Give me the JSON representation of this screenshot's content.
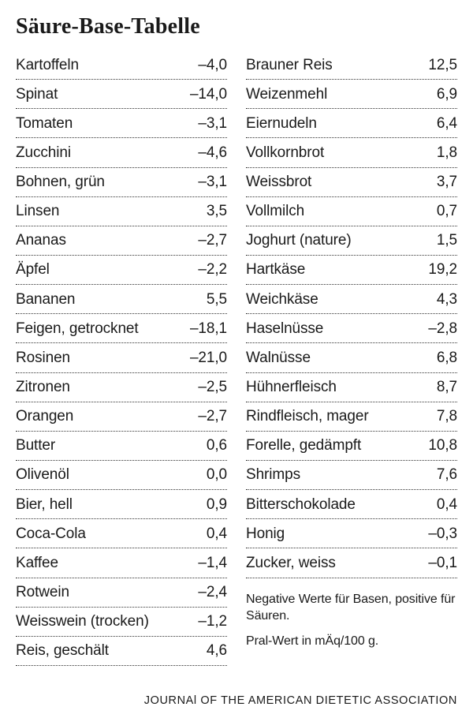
{
  "title": "Säure-Base-Tabelle",
  "left": [
    {
      "label": "Kartoffeln",
      "value": "–4,0"
    },
    {
      "label": "Spinat",
      "value": "–14,0"
    },
    {
      "label": "Tomaten",
      "value": "–3,1"
    },
    {
      "label": "Zucchini",
      "value": "–4,6"
    },
    {
      "label": "Bohnen, grün",
      "value": "–3,1"
    },
    {
      "label": "Linsen",
      "value": "3,5"
    },
    {
      "label": "Ananas",
      "value": "–2,7"
    },
    {
      "label": "Äpfel",
      "value": "–2,2"
    },
    {
      "label": "Bananen",
      "value": "5,5"
    },
    {
      "label": "Feigen, getrocknet",
      "value": "–18,1"
    },
    {
      "label": "Rosinen",
      "value": "–21,0"
    },
    {
      "label": "Zitronen",
      "value": "–2,5"
    },
    {
      "label": "Orangen",
      "value": "–2,7"
    },
    {
      "label": "Butter",
      "value": "0,6"
    },
    {
      "label": "Olivenöl",
      "value": "0,0"
    },
    {
      "label": "Bier, hell",
      "value": "0,9"
    },
    {
      "label": "Coca-Cola",
      "value": "0,4"
    },
    {
      "label": "Kaffee",
      "value": "–1,4"
    },
    {
      "label": "Rotwein",
      "value": "–2,4"
    },
    {
      "label": "Weisswein (trocken)",
      "value": "–1,2"
    },
    {
      "label": "Reis, geschält",
      "value": "4,6"
    }
  ],
  "right": [
    {
      "label": "Brauner Reis",
      "value": "12,5"
    },
    {
      "label": "Weizenmehl",
      "value": "6,9"
    },
    {
      "label": "Eiernudeln",
      "value": "6,4"
    },
    {
      "label": "Vollkornbrot",
      "value": "1,8"
    },
    {
      "label": "Weissbrot",
      "value": "3,7"
    },
    {
      "label": "Vollmilch",
      "value": "0,7"
    },
    {
      "label": "Joghurt (nature)",
      "value": "1,5"
    },
    {
      "label": "Hartkäse",
      "value": "19,2"
    },
    {
      "label": "Weichkäse",
      "value": "4,3"
    },
    {
      "label": "Haselnüsse",
      "value": "–2,8"
    },
    {
      "label": "Walnüsse",
      "value": "6,8"
    },
    {
      "label": "Hühnerfleisch",
      "value": "8,7"
    },
    {
      "label": "Rindfleisch, mager",
      "value": "7,8"
    },
    {
      "label": "Forelle, gedämpft",
      "value": "10,8"
    },
    {
      "label": "Shrimps",
      "value": "7,6"
    },
    {
      "label": "Bitterschokolade",
      "value": "0,4"
    },
    {
      "label": "Honig",
      "value": "–0,3"
    },
    {
      "label": "Zucker, weiss",
      "value": "–0,1"
    }
  ],
  "notes": {
    "line1": "Negative Werte für Basen, positive für Säuren.",
    "line2": "Pral-Wert in mÄq/100 g."
  },
  "source": "JOURNAl OF THE AMERICAN DIETETIC ASSOCIATION"
}
